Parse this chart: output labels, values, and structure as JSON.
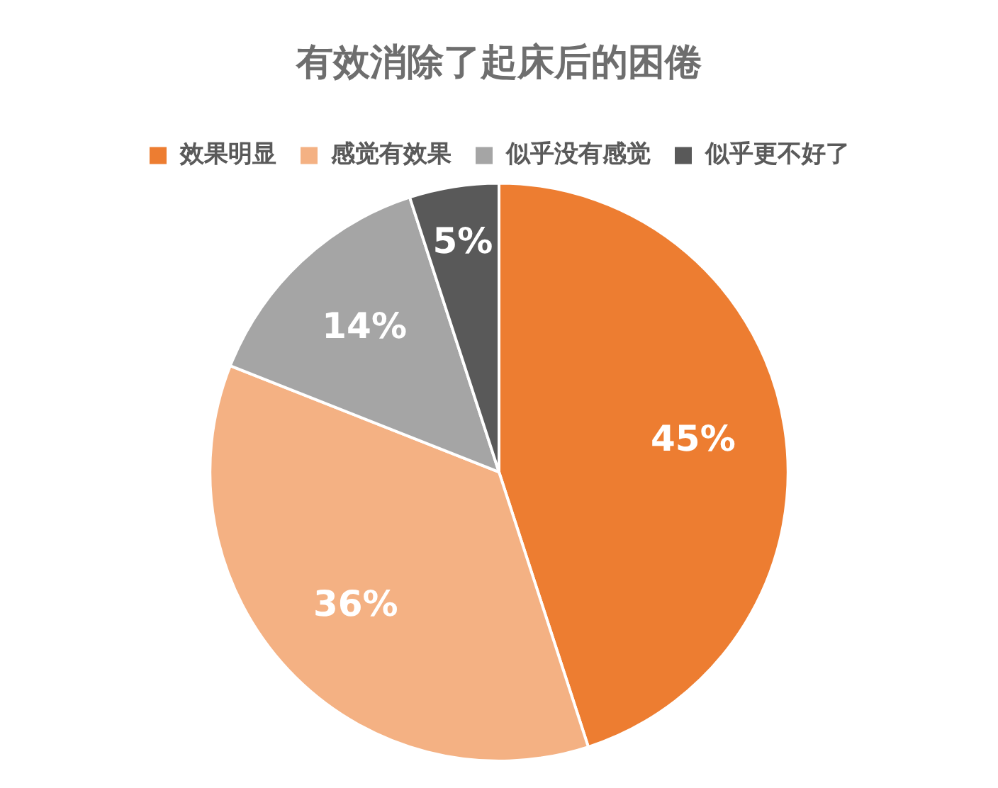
{
  "chart_data": {
    "type": "pie",
    "title": "有效消除了起床后的困倦",
    "categories": [
      "效果明显",
      "感觉有效果",
      "似乎没有感觉",
      "似乎更不好了"
    ],
    "values": [
      45,
      36,
      14,
      5
    ],
    "colors": [
      "#ed7d31",
      "#f4b183",
      "#a5a5a5",
      "#595959"
    ],
    "value_labels": [
      "45%",
      "36%",
      "14%",
      "5%"
    ],
    "legend": "top"
  }
}
